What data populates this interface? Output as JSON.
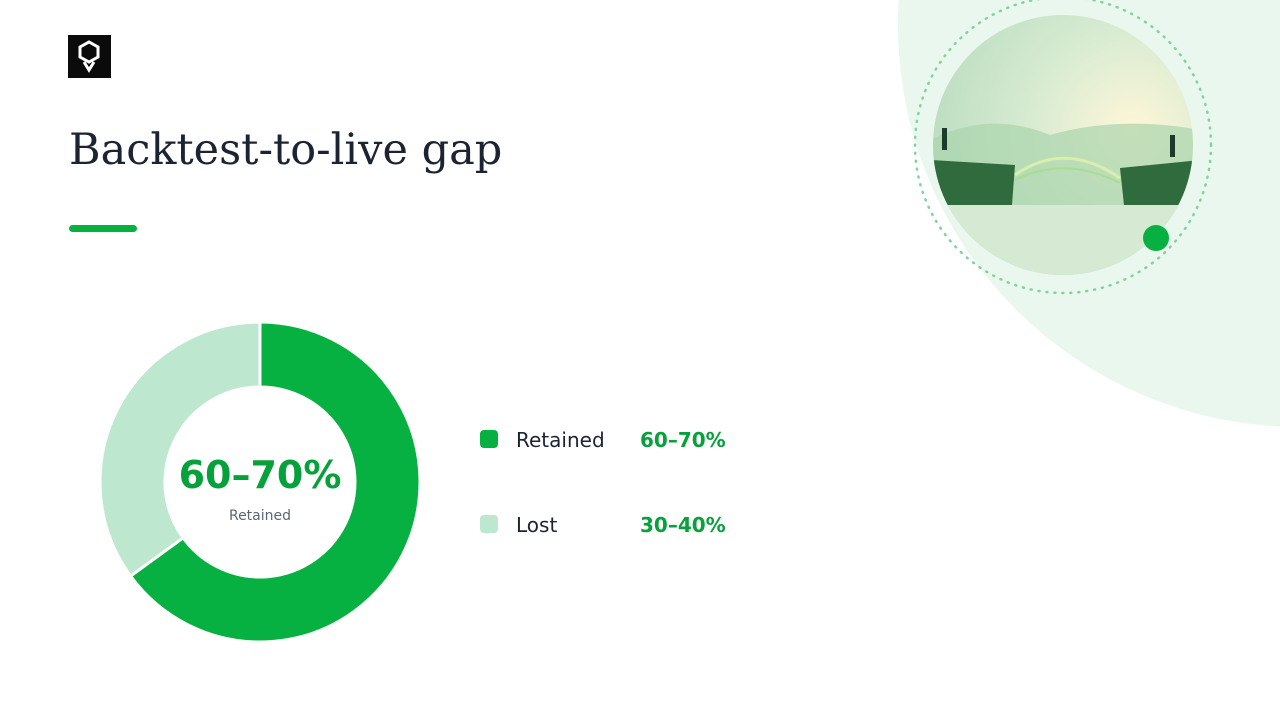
{
  "chart_data": {
    "type": "donut",
    "title": "Backtest-to-live gap",
    "categories": [
      "Retained",
      "Lost"
    ],
    "values": [
      65,
      35
    ],
    "value_labels": [
      "60–70%",
      "30–40%"
    ],
    "colors": [
      "#07b141",
      "#bde8cf"
    ]
  }
}
